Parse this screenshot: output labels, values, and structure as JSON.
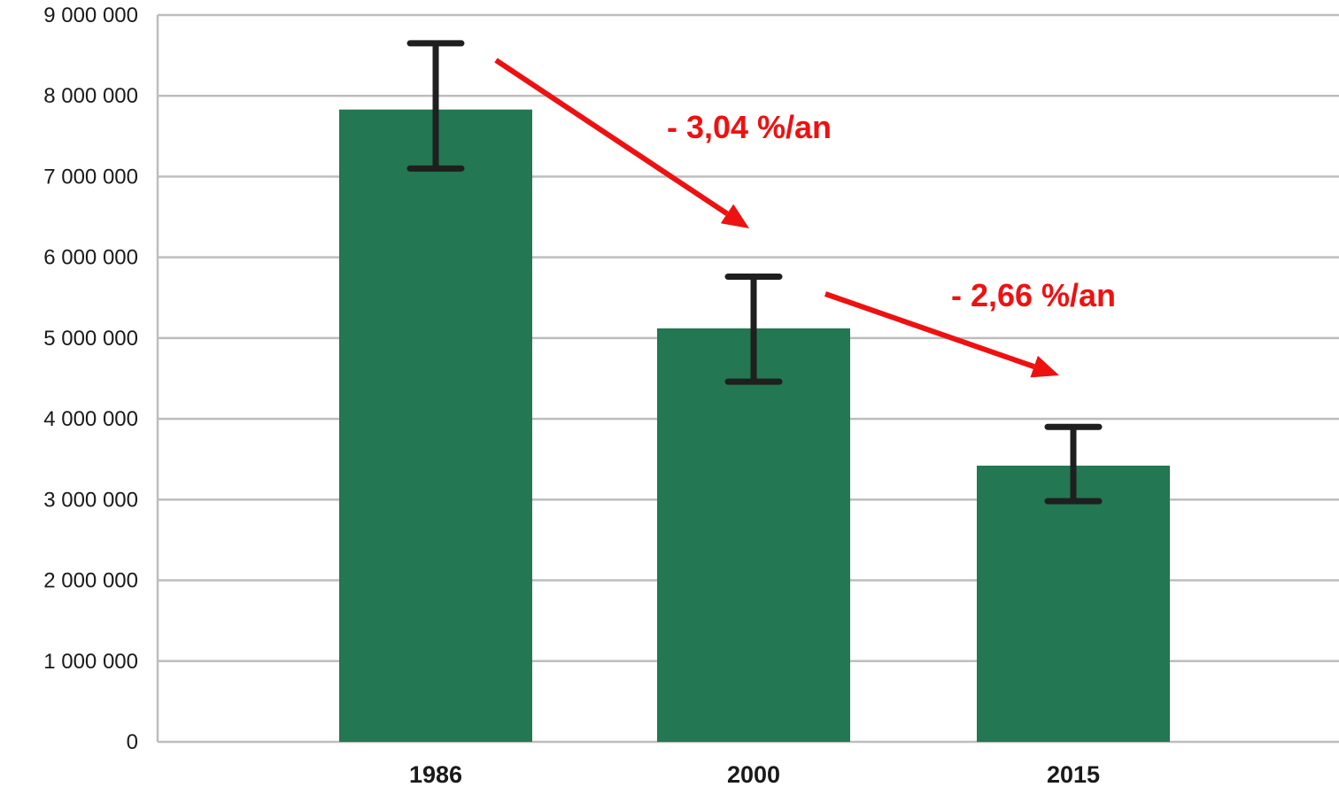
{
  "chart_data": {
    "type": "bar",
    "categories": [
      "1986",
      "2000",
      "2015"
    ],
    "values": [
      7830000,
      5120000,
      3420000
    ],
    "error_bars": [
      {
        "low": 7100000,
        "high": 8650000
      },
      {
        "low": 4460000,
        "high": 5760000
      },
      {
        "low": 2980000,
        "high": 3900000
      }
    ],
    "yticks": [
      0,
      1000000,
      2000000,
      3000000,
      4000000,
      5000000,
      6000000,
      7000000,
      8000000,
      9000000
    ],
    "ytick_labels": [
      "0",
      "1 000 000",
      "2 000 000",
      "3 000 000",
      "4 000 000",
      "5 000 000",
      "6 000 000",
      "7 000 000",
      "8 000 000",
      "9 000 000"
    ],
    "ylim": [
      0,
      9000000
    ],
    "grid": true,
    "title": "",
    "xlabel": "",
    "ylabel": "",
    "annotations": [
      {
        "text": "- 3,04 %/an",
        "from_category": "1986",
        "to_category": "2000"
      },
      {
        "text": "- 2,66 %/an",
        "from_category": "2000",
        "to_category": "2015"
      }
    ],
    "colors": {
      "bar": "#237752",
      "error_bar": "#1f1f1f",
      "grid": "#bdbdbd",
      "annotation": "#ee1111"
    }
  }
}
